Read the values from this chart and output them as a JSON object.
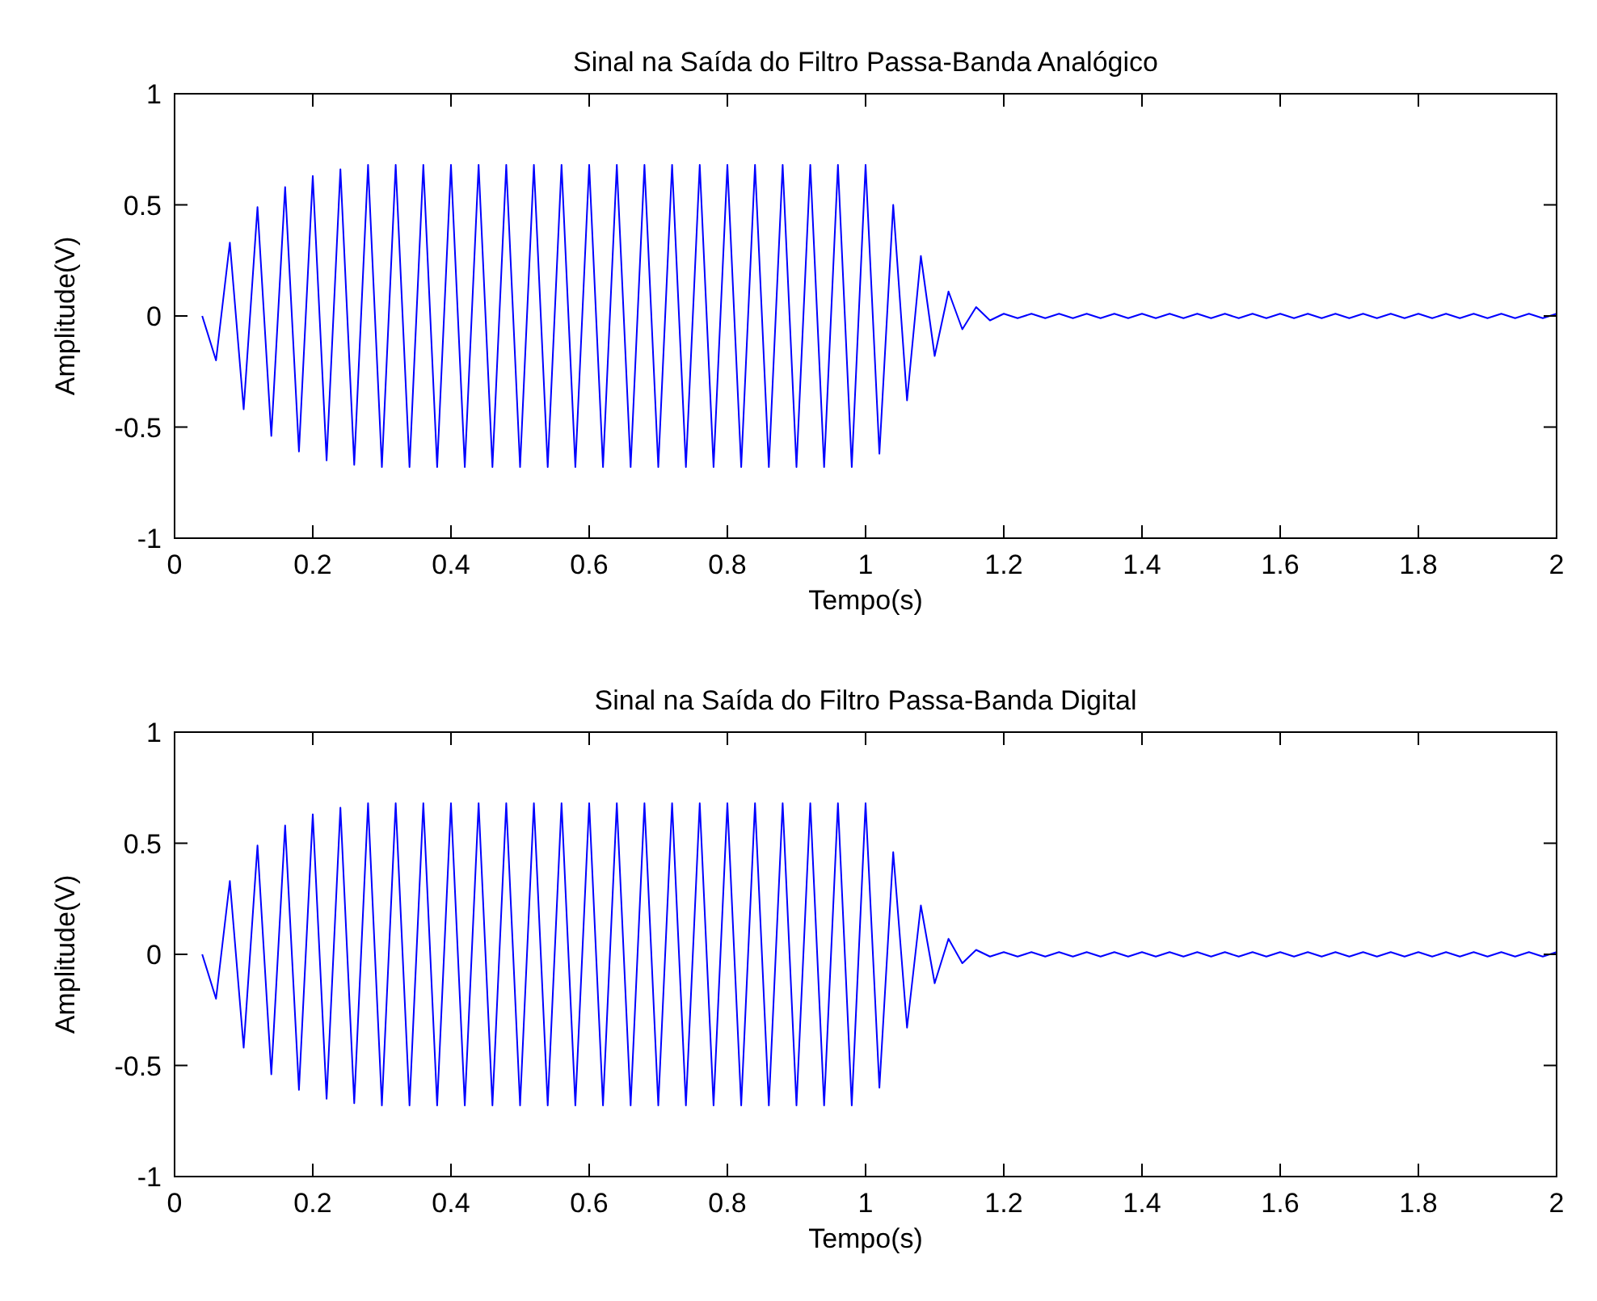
{
  "chart_data": [
    {
      "type": "line",
      "title": "Sinal na Saída do Filtro Passa-Banda Analógico",
      "xlabel": "Tempo(s)",
      "ylabel": "Amplitude(V)",
      "xlim": [
        0,
        2
      ],
      "ylim": [
        -1,
        1
      ],
      "xticks": [
        0,
        0.2,
        0.4,
        0.6,
        0.8,
        1,
        1.2,
        1.4,
        1.6,
        1.8,
        2
      ],
      "yticks": [
        -1,
        -0.5,
        0,
        0.5,
        1
      ],
      "grid": false,
      "marker": "none",
      "line_style": "solid",
      "x": [
        0.04,
        0.06,
        0.08,
        0.1,
        0.12,
        0.14,
        0.16,
        0.18,
        0.2,
        0.22,
        0.24,
        0.26,
        0.28,
        0.3,
        0.32,
        0.34,
        0.36,
        0.38,
        0.4,
        0.42,
        0.44,
        0.46,
        0.48,
        0.5,
        0.52,
        0.54,
        0.56,
        0.58,
        0.6,
        0.62,
        0.64,
        0.66,
        0.68,
        0.7,
        0.72,
        0.74,
        0.76,
        0.78,
        0.8,
        0.82,
        0.84,
        0.86,
        0.88,
        0.9,
        0.92,
        0.94,
        0.96,
        0.98,
        1.0,
        1.02,
        1.04,
        1.06,
        1.08,
        1.1,
        1.12,
        1.14,
        1.16,
        1.18,
        1.2,
        1.22,
        1.24,
        1.26,
        1.28,
        1.3,
        1.32,
        1.34,
        1.36,
        1.38,
        1.4,
        1.42,
        1.44,
        1.46,
        1.48,
        1.5,
        1.52,
        1.54,
        1.56,
        1.58,
        1.6,
        1.62,
        1.64,
        1.66,
        1.68,
        1.7,
        1.72,
        1.74,
        1.76,
        1.78,
        1.8,
        1.82,
        1.84,
        1.86,
        1.88,
        1.9,
        1.92,
        1.94,
        1.96,
        1.98,
        2.0
      ],
      "series": [
        {
          "color": "#0000ff",
          "values": [
            0,
            -0.2,
            0.33,
            -0.42,
            0.49,
            -0.54,
            0.58,
            -0.61,
            0.63,
            -0.65,
            0.66,
            -0.67,
            0.68,
            -0.68,
            0.68,
            -0.68,
            0.68,
            -0.68,
            0.68,
            -0.68,
            0.68,
            -0.68,
            0.68,
            -0.68,
            0.68,
            -0.68,
            0.68,
            -0.68,
            0.68,
            -0.68,
            0.68,
            -0.68,
            0.68,
            -0.68,
            0.68,
            -0.68,
            0.68,
            -0.68,
            0.68,
            -0.68,
            0.68,
            -0.68,
            0.68,
            -0.68,
            0.68,
            -0.68,
            0.68,
            -0.68,
            0.68,
            -0.62,
            0.5,
            -0.38,
            0.27,
            -0.18,
            0.11,
            -0.06,
            0.04,
            -0.02,
            0.01,
            -0.01,
            0.01,
            -0.01,
            0.01,
            -0.01,
            0.01,
            -0.01,
            0.01,
            -0.01,
            0.01,
            -0.01,
            0.01,
            -0.01,
            0.01,
            -0.01,
            0.01,
            -0.01,
            0.01,
            -0.01,
            0.01,
            -0.01,
            0.01,
            -0.01,
            0.01,
            -0.01,
            0.01,
            -0.01,
            0.01,
            -0.01,
            0.01,
            -0.01,
            0.01,
            -0.01,
            0.01,
            -0.01,
            0.01,
            -0.01,
            0.01,
            -0.01,
            0.01
          ]
        }
      ]
    },
    {
      "type": "line",
      "title": "Sinal na Saída do Filtro Passa-Banda Digital",
      "xlabel": "Tempo(s)",
      "ylabel": "Amplitude(V)",
      "xlim": [
        0,
        2
      ],
      "ylim": [
        -1,
        1
      ],
      "xticks": [
        0,
        0.2,
        0.4,
        0.6,
        0.8,
        1,
        1.2,
        1.4,
        1.6,
        1.8,
        2
      ],
      "yticks": [
        -1,
        -0.5,
        0,
        0.5,
        1
      ],
      "grid": false,
      "marker": "none",
      "line_style": "solid",
      "x": [
        0.04,
        0.06,
        0.08,
        0.1,
        0.12,
        0.14,
        0.16,
        0.18,
        0.2,
        0.22,
        0.24,
        0.26,
        0.28,
        0.3,
        0.32,
        0.34,
        0.36,
        0.38,
        0.4,
        0.42,
        0.44,
        0.46,
        0.48,
        0.5,
        0.52,
        0.54,
        0.56,
        0.58,
        0.6,
        0.62,
        0.64,
        0.66,
        0.68,
        0.7,
        0.72,
        0.74,
        0.76,
        0.78,
        0.8,
        0.82,
        0.84,
        0.86,
        0.88,
        0.9,
        0.92,
        0.94,
        0.96,
        0.98,
        1.0,
        1.02,
        1.04,
        1.06,
        1.08,
        1.1,
        1.12,
        1.14,
        1.16,
        1.18,
        1.2,
        1.22,
        1.24,
        1.26,
        1.28,
        1.3,
        1.32,
        1.34,
        1.36,
        1.38,
        1.4,
        1.42,
        1.44,
        1.46,
        1.48,
        1.5,
        1.52,
        1.54,
        1.56,
        1.58,
        1.6,
        1.62,
        1.64,
        1.66,
        1.68,
        1.7,
        1.72,
        1.74,
        1.76,
        1.78,
        1.8,
        1.82,
        1.84,
        1.86,
        1.88,
        1.9,
        1.92,
        1.94,
        1.96,
        1.98,
        2.0
      ],
      "series": [
        {
          "color": "#0000ff",
          "values": [
            0,
            -0.2,
            0.33,
            -0.42,
            0.49,
            -0.54,
            0.58,
            -0.61,
            0.63,
            -0.65,
            0.66,
            -0.67,
            0.68,
            -0.68,
            0.68,
            -0.68,
            0.68,
            -0.68,
            0.68,
            -0.68,
            0.68,
            -0.68,
            0.68,
            -0.68,
            0.68,
            -0.68,
            0.68,
            -0.68,
            0.68,
            -0.68,
            0.68,
            -0.68,
            0.68,
            -0.68,
            0.68,
            -0.68,
            0.68,
            -0.68,
            0.68,
            -0.68,
            0.68,
            -0.68,
            0.68,
            -0.68,
            0.68,
            -0.68,
            0.68,
            -0.68,
            0.68,
            -0.6,
            0.46,
            -0.33,
            0.22,
            -0.13,
            0.07,
            -0.04,
            0.02,
            -0.01,
            0.01,
            -0.01,
            0.01,
            -0.01,
            0.01,
            -0.01,
            0.01,
            -0.01,
            0.01,
            -0.01,
            0.01,
            -0.01,
            0.01,
            -0.01,
            0.01,
            -0.01,
            0.01,
            -0.01,
            0.01,
            -0.01,
            0.01,
            -0.01,
            0.01,
            -0.01,
            0.01,
            -0.01,
            0.01,
            -0.01,
            0.01,
            -0.01,
            0.01,
            -0.01,
            0.01,
            -0.01,
            0.01,
            -0.01,
            0.01,
            -0.01,
            0.01,
            -0.01,
            0.01
          ]
        }
      ]
    }
  ]
}
